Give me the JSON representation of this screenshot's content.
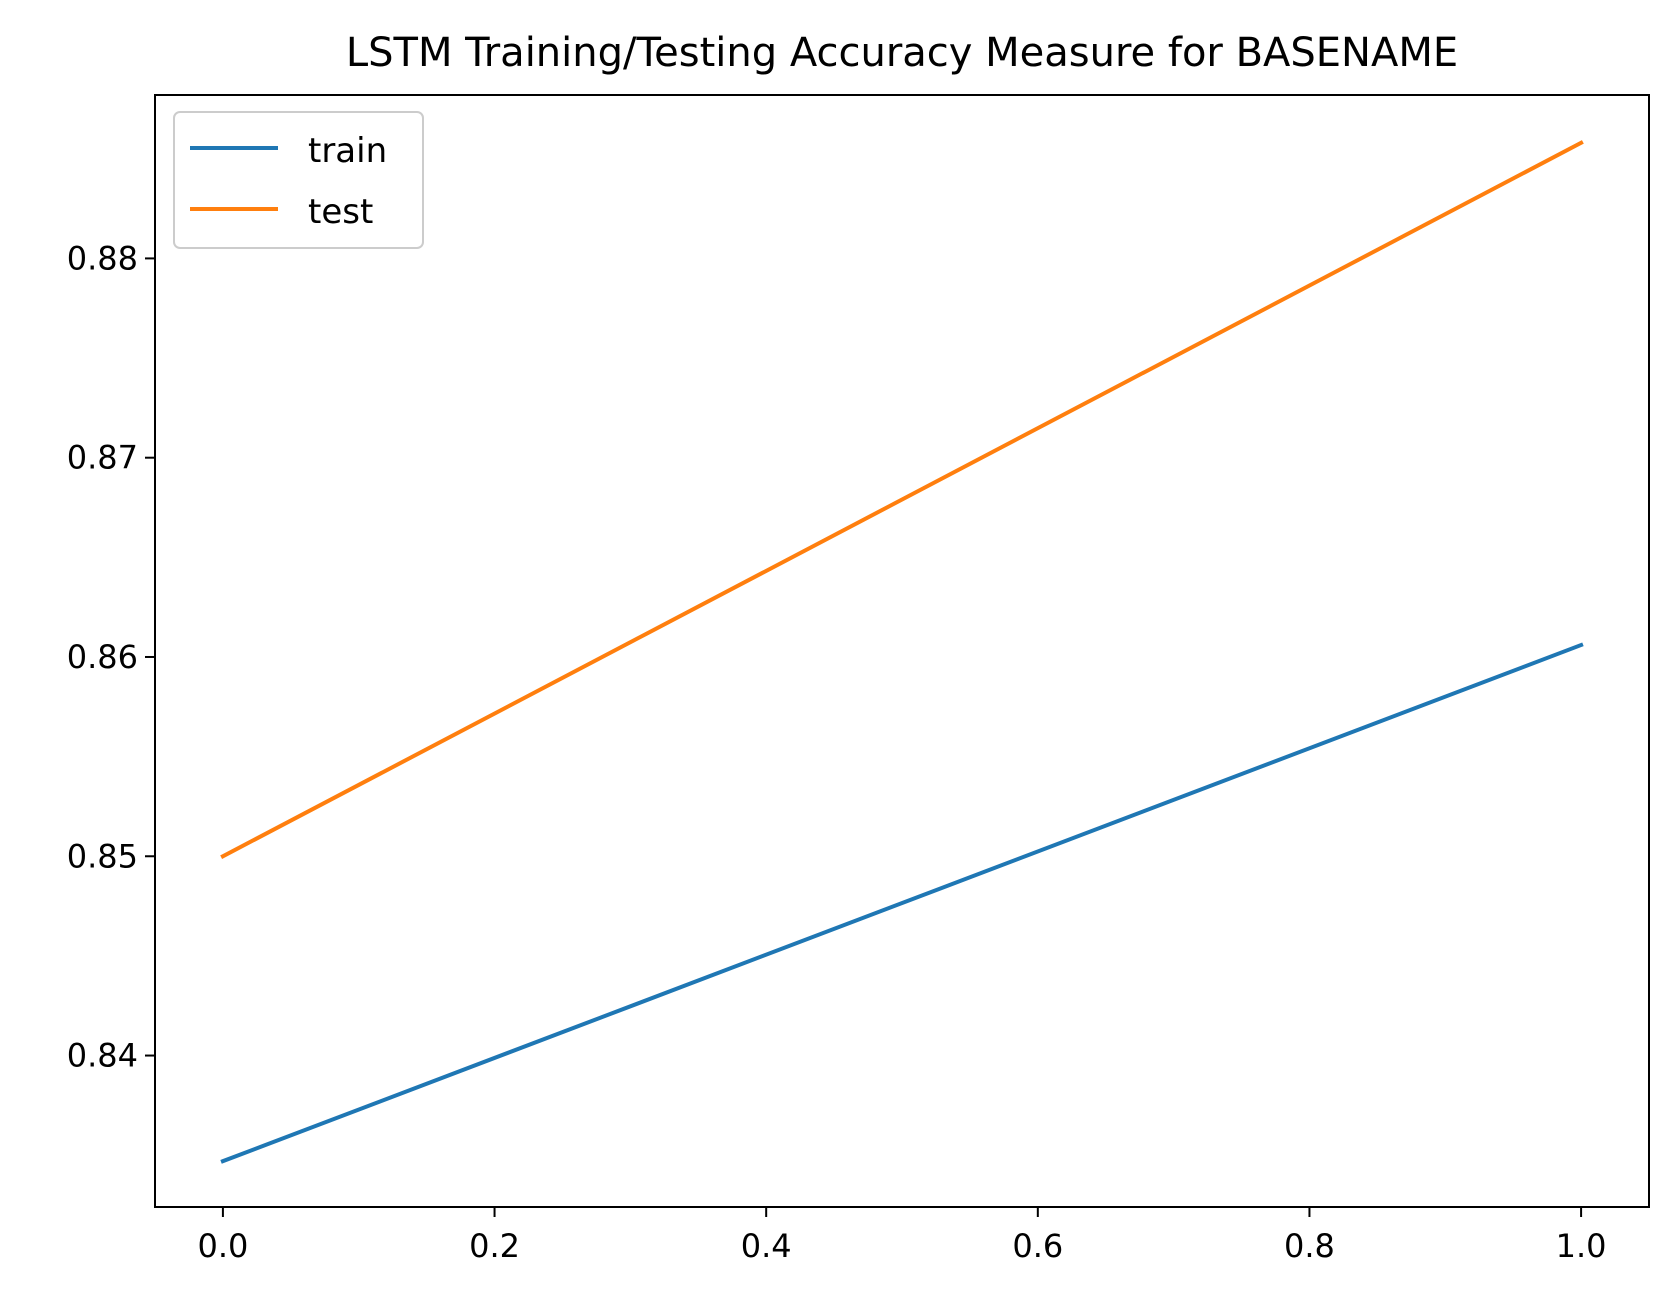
{
  "chart_data": {
    "type": "line",
    "title": "LSTM Training/Testing Accuracy Measure for BASENAME",
    "xlabel": "",
    "ylabel": "",
    "x": [
      0.0,
      1.0
    ],
    "series": [
      {
        "name": "train",
        "color": "#1f77b4",
        "values": [
          0.8347,
          0.8606
        ]
      },
      {
        "name": "test",
        "color": "#ff7f0e",
        "values": [
          0.85,
          0.8858
        ]
      }
    ],
    "xlim": [
      -0.05,
      1.05
    ],
    "ylim": [
      0.8324,
      0.8882
    ],
    "xticks": [
      0.0,
      0.2,
      0.4,
      0.6,
      0.8,
      1.0
    ],
    "xtick_labels": [
      "0.0",
      "0.2",
      "0.4",
      "0.6",
      "0.8",
      "1.0"
    ],
    "yticks": [
      0.84,
      0.85,
      0.86,
      0.87,
      0.88
    ],
    "ytick_labels": [
      "0.84",
      "0.85",
      "0.86",
      "0.87",
      "0.88"
    ],
    "grid": false,
    "legend": {
      "position": "top-left"
    }
  }
}
